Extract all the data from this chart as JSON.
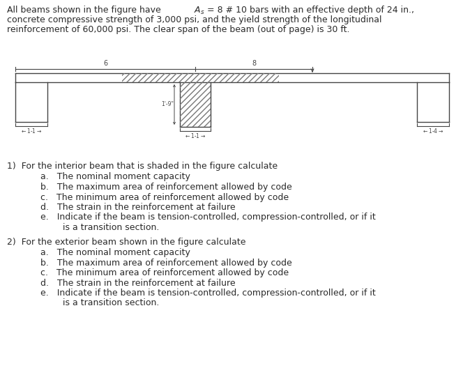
{
  "bg_color": "#ffffff",
  "text_color": "#2a2a2a",
  "line_color": "#444444",
  "hatch_color": "#777777",
  "header_line1": "All beams shown in the figure have ",
  "header_As": "A",
  "header_s": "s",
  "header_line1b": " = 8 # 10 bars with an effective depth of 24 in.,",
  "header_line2": "concrete compressive strength of 3,000 psi, and the yield strength of the longitudinal",
  "header_line3": "reinforcement of 60,000 psi. The clear span of the beam (out of page) is 30 ft.",
  "dim_label_6": "6",
  "dim_label_8": "8",
  "dim_label_height": "1'-9\"",
  "dim_label_left_stem": "1-1",
  "dim_label_mid_stem": "1-1",
  "dim_label_right_stem": "1-4",
  "q1_title": "1)  For the interior beam that is shaded in the figure calculate",
  "q1_items": [
    "a.   The nominal moment capacity",
    "b.   The maximum area of reinforcement allowed by code",
    "c.   The minimum area of reinforcement allowed by code",
    "d.   The strain in the reinforcement at failure",
    "e.   Indicate if the beam is tension-controlled, compression-controlled, or if it",
    "        is a transition section."
  ],
  "q2_title": "2)  For the exterior beam shown in the figure calculate",
  "q2_items": [
    "a.   The nominal moment capacity",
    "b.   The maximum area of reinforcement allowed by code",
    "c.   The minimum area of reinforcement allowed by code",
    "d.   The strain in the reinforcement at failure",
    "e.   Indicate if the beam is tension-controlled, compression-controlled, or if it",
    "        is a transition section."
  ]
}
